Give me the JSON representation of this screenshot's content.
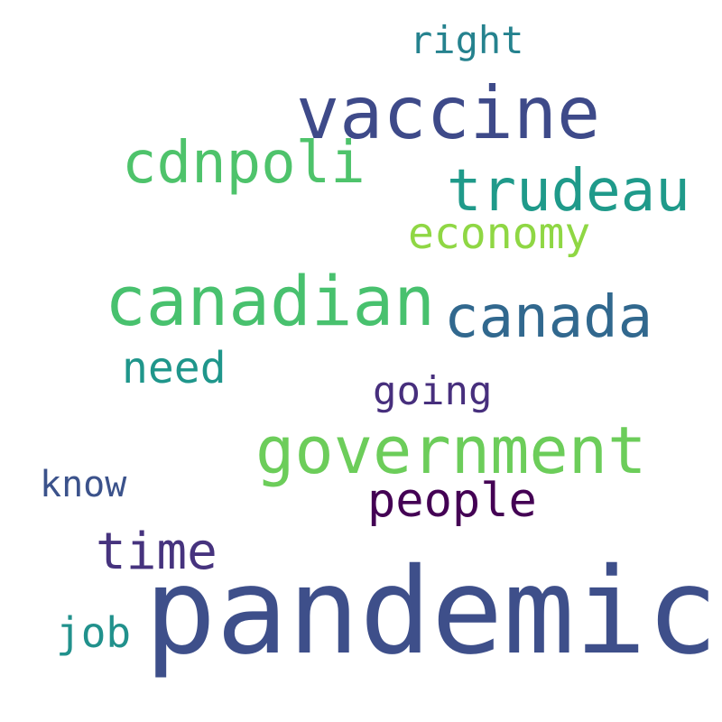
{
  "words": [
    {
      "id": "right",
      "text": "right",
      "color": "#25828e"
    },
    {
      "id": "vaccine",
      "text": "vaccine",
      "color": "#3e4a89"
    },
    {
      "id": "cdnpoli",
      "text": "cdnpoli",
      "color": "#4ec36b"
    },
    {
      "id": "trudeau",
      "text": "trudeau",
      "color": "#1f9a8a"
    },
    {
      "id": "economy",
      "text": "economy",
      "color": "#8fd744"
    },
    {
      "id": "canadian",
      "text": "canadian",
      "color": "#48c16e"
    },
    {
      "id": "canada",
      "text": "canada",
      "color": "#31688e"
    },
    {
      "id": "need",
      "text": "need",
      "color": "#1f968b"
    },
    {
      "id": "going",
      "text": "going",
      "color": "#472f7d"
    },
    {
      "id": "government",
      "text": "government",
      "color": "#6ccd5a"
    },
    {
      "id": "know",
      "text": "know",
      "color": "#3b528b"
    },
    {
      "id": "people",
      "text": "people",
      "color": "#440154"
    },
    {
      "id": "time",
      "text": "time",
      "color": "#46337e"
    },
    {
      "id": "pandemic",
      "text": "pandemic",
      "color": "#3e4f8a"
    },
    {
      "id": "job",
      "text": "job",
      "color": "#21918c"
    }
  ]
}
